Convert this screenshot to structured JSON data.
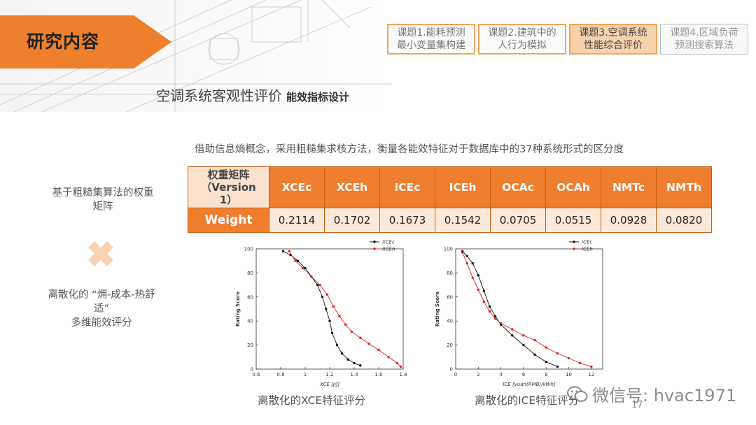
{
  "header": {
    "section_title": "研究内容",
    "tabs": [
      {
        "label": "课题1.能耗预测\n最小变量集构建",
        "tone": "orange"
      },
      {
        "label": "课题2.建筑中的\n人行为模拟",
        "tone": "orange"
      },
      {
        "label": "课题3.空调系统\n性能综合评价",
        "tone": "active"
      },
      {
        "label": "课题4.区域负荷\n预测搜索算法",
        "tone": "gray"
      }
    ]
  },
  "subtitle": {
    "main": "空调系统客观性评价",
    "small": "能效指标设计"
  },
  "description": "借助信息熵概念，采用粗糙集求核方法，衡量各能效特征对于数据库中的37种系统形式的区分度",
  "left_labels": {
    "matrix": "基于粗糙集算法的权重\n矩阵",
    "scoring": "离散化的 “㶲-成本-热舒\n适”\n多维能效评分"
  },
  "table": {
    "corner": "权重矩阵\n（Version\n1）",
    "headers": [
      "XCEc",
      "XCEh",
      "ICEc",
      "ICEh",
      "OCAc",
      "OCAh",
      "NMTc",
      "NMTh"
    ],
    "row_label": "Weight",
    "values": [
      "0.2114",
      "0.1702",
      "0.1673",
      "0.1542",
      "0.0705",
      "0.0515",
      "0.0928",
      "0.0820"
    ]
  },
  "chart_data": [
    {
      "type": "scatter",
      "title": "",
      "xlabel": "XCE [J/J]",
      "ylabel": "Rating Score",
      "xlim": [
        0.6,
        1.8
      ],
      "ylim": [
        0,
        100
      ],
      "xticks": [
        0.6,
        0.8,
        1.0,
        1.2,
        1.4,
        1.6,
        1.8
      ],
      "yticks": [
        0,
        20,
        40,
        60,
        80,
        100
      ],
      "legend_position": "top-right",
      "series": [
        {
          "name": "XCEc",
          "color": "#111111",
          "x": [
            0.82,
            0.88,
            0.94,
            1.0,
            1.05,
            1.1,
            1.14,
            1.17,
            1.2,
            1.22,
            1.26,
            1.3,
            1.35,
            1.4,
            1.45
          ],
          "y": [
            98,
            95,
            90,
            84,
            77,
            70,
            60,
            50,
            40,
            30,
            20,
            13,
            8,
            5,
            3
          ]
        },
        {
          "name": "XCEh",
          "color": "#e02020",
          "x": [
            0.87,
            0.92,
            0.98,
            1.05,
            1.12,
            1.18,
            1.23,
            1.28,
            1.33,
            1.38,
            1.45,
            1.52,
            1.6,
            1.68,
            1.75,
            1.78
          ],
          "y": [
            98,
            90,
            84,
            77,
            70,
            62,
            52,
            44,
            37,
            31,
            26,
            21,
            16,
            10,
            5,
            2
          ]
        }
      ],
      "caption": "离散化的XCE特征评分"
    },
    {
      "type": "scatter",
      "title": "",
      "xlabel": "ICE [yuan(RMB)/kWh]",
      "ylabel": "Rating Score",
      "xlim": [
        0,
        13
      ],
      "ylim": [
        0,
        100
      ],
      "xticks": [
        0,
        2,
        4,
        6,
        8,
        10,
        12
      ],
      "yticks": [
        0,
        20,
        40,
        60,
        80,
        100
      ],
      "legend_position": "top-right",
      "series": [
        {
          "name": "ICEc",
          "color": "#111111",
          "x": [
            0.6,
            1.0,
            1.5,
            2.0,
            2.5,
            3.0,
            3.5,
            4.0,
            5.0,
            6.0,
            7.0,
            8.0,
            9.0
          ],
          "y": [
            98,
            94,
            88,
            78,
            65,
            52,
            44,
            37,
            28,
            20,
            12,
            6,
            2
          ]
        },
        {
          "name": "ICEh",
          "color": "#e02020",
          "x": [
            0.6,
            1.0,
            1.5,
            2.0,
            2.5,
            3.0,
            3.5,
            4.0,
            5.0,
            6.0,
            7.0,
            8.0,
            9.0,
            10.0,
            11.0,
            12.0
          ],
          "y": [
            97,
            88,
            76,
            66,
            56,
            48,
            42,
            38,
            33,
            28,
            24,
            18,
            13,
            9,
            5,
            2
          ]
        }
      ],
      "caption": "离散化的ICE特征评分"
    }
  ],
  "page_number": "17",
  "watermark": "微信号: hvac1971"
}
